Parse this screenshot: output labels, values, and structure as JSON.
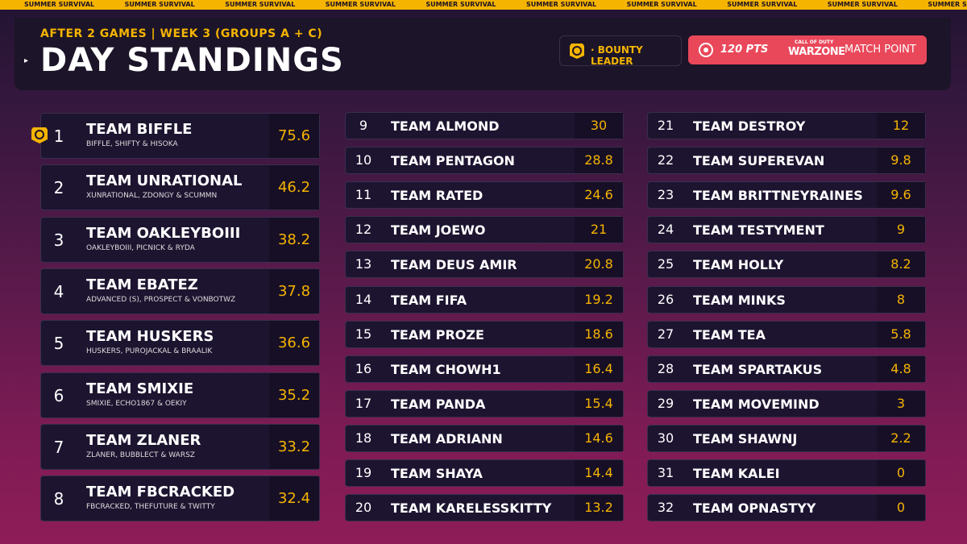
{
  "banner": "SUMMER SURVIVAL",
  "header": {
    "subtitle": "AFTER 2 GAMES | WEEK 3 (GROUPS A + C)",
    "title": "DAY STANDINGS"
  },
  "legend": {
    "bounty": "· BOUNTY LEADER",
    "points": "120 PTS",
    "logo_top": "CALL OF DUTY",
    "logo": "WARZONE",
    "match_point": "MATCH POINT"
  },
  "standings": {
    "top": [
      {
        "rank": 1,
        "team": "TEAM BIFFLE",
        "players": "BIFFLE, SHIFTY & HISOKA",
        "points": 75.6,
        "bounty": true
      },
      {
        "rank": 2,
        "team": "TEAM UNRATIONAL",
        "players": "XUNRATIONAL, ZDONGY & SCUMMN",
        "points": 46.2
      },
      {
        "rank": 3,
        "team": "TEAM OAKLEYBOIII",
        "players": "OAKLEYBOIII, PICNICK & RYDA",
        "points": 38.2
      },
      {
        "rank": 4,
        "team": "TEAM EBATEZ",
        "players": "ADVANCED (S), PROSPECT & VONBOTWZ",
        "points": 37.8
      },
      {
        "rank": 5,
        "team": "TEAM HUSKERS",
        "players": "HUSKERS, PUROJACKAL & BRAALIK",
        "points": 36.6
      },
      {
        "rank": 6,
        "team": "TEAM SMIXIE",
        "players": "SMIXIE, ECHO1867 & OEKIY",
        "points": 35.2
      },
      {
        "rank": 7,
        "team": "TEAM ZLANER",
        "players": "ZLANER, BUBBLECT & WARSZ",
        "points": 33.2
      },
      {
        "rank": 8,
        "team": "TEAM FBCRACKED",
        "players": "FBCRACKED, THEFUTURE & TWITTY",
        "points": 32.4
      }
    ],
    "columns": [
      [
        {
          "rank": 9,
          "team": "TEAM ALMOND",
          "points": 30
        },
        {
          "rank": 10,
          "team": "TEAM PENTAGON",
          "points": 28.8
        },
        {
          "rank": 11,
          "team": "TEAM RATED",
          "points": 24.6
        },
        {
          "rank": 12,
          "team": "TEAM JOEWO",
          "points": 21
        },
        {
          "rank": 13,
          "team": "TEAM DEUS AMIR",
          "points": 20.8
        },
        {
          "rank": 14,
          "team": "TEAM FIFA",
          "points": 19.2
        },
        {
          "rank": 15,
          "team": "TEAM PROZE",
          "points": 18.6
        },
        {
          "rank": 16,
          "team": "TEAM CHOWH1",
          "points": 16.4
        },
        {
          "rank": 17,
          "team": "TEAM PANDA",
          "points": 15.4
        },
        {
          "rank": 18,
          "team": "TEAM ADRIANN",
          "points": 14.6
        },
        {
          "rank": 19,
          "team": "TEAM SHAYA",
          "points": 14.4
        },
        {
          "rank": 20,
          "team": "TEAM KARELESSKITTY",
          "points": 13.2
        }
      ],
      [
        {
          "rank": 21,
          "team": "TEAM DESTROY",
          "points": 12
        },
        {
          "rank": 22,
          "team": "TEAM SUPEREVAN",
          "points": 9.8
        },
        {
          "rank": 23,
          "team": "TEAM BRITTNEYRAINES",
          "points": 9.6
        },
        {
          "rank": 24,
          "team": "TEAM TESTYMENT",
          "points": 9
        },
        {
          "rank": 25,
          "team": "TEAM HOLLY",
          "points": 8.2
        },
        {
          "rank": 26,
          "team": "TEAM MINKS",
          "points": 8
        },
        {
          "rank": 27,
          "team": "TEAM TEA",
          "points": 5.8
        },
        {
          "rank": 28,
          "team": "TEAM SPARTAKUS",
          "points": 4.8
        },
        {
          "rank": 29,
          "team": "TEAM MOVEMIND",
          "points": 3
        },
        {
          "rank": 30,
          "team": "TEAM SHAWNJ",
          "points": 2.2
        },
        {
          "rank": 31,
          "team": "TEAM KALEI",
          "points": 0
        },
        {
          "rank": 32,
          "team": "TEAM OPNASTYY",
          "points": 0
        }
      ]
    ]
  }
}
